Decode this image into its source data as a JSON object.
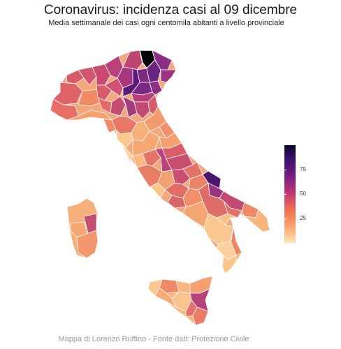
{
  "header": {
    "title": "Coronavirus: incidenza casi al 09 dicembre",
    "subtitle": "Media settimanale dei casi ogni centomila abitanti a livello provinciale"
  },
  "legend": {
    "ticks": [
      "75",
      "50",
      "25"
    ],
    "tick_values": [
      75,
      50,
      25
    ],
    "range": [
      0,
      100
    ],
    "palette": "magma"
  },
  "footer": {
    "caption": "Mappa di Lorenzo Ruffino - Fonte dati: Protezione Civile"
  },
  "colors": {
    "background": "#ffffff",
    "max": "#000000",
    "high": "#5a1a7a",
    "mid": "#c13a73",
    "low": "#f4845f",
    "lowest": "#fdc88e"
  }
}
